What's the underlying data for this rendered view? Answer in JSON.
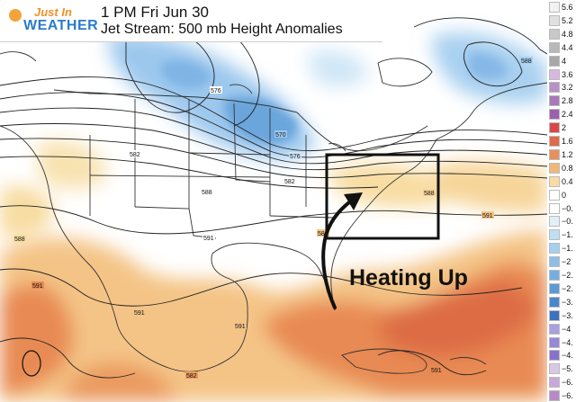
{
  "header": {
    "logo_top": "Just In",
    "logo_bottom": "WEATHER",
    "line1": "1 PM Fri Jun 30",
    "line2": "Jet Stream: 500 mb  Height Anomalies"
  },
  "annotation": {
    "text": "Heating Up"
  },
  "contour_labels": [
    "576",
    "570",
    "576",
    "582",
    "582",
    "588",
    "588",
    "588",
    "588",
    "591",
    "591",
    "591",
    "591",
    "591",
    "591",
    "582",
    "588"
  ],
  "legend": {
    "labels": [
      "5.6",
      "5.2",
      "4.8",
      "4.4",
      "4",
      "3.6",
      "3.2",
      "2.8",
      "2.4",
      "2",
      "1.6",
      "1.2",
      "0.8",
      "0.4",
      "0",
      "−0.",
      "−0.",
      "−1.",
      "−1.",
      "−2",
      "−2.",
      "−2.",
      "−3.",
      "−3.",
      "−4",
      "−4.",
      "−4.",
      "−5.",
      "−6.",
      "−6."
    ],
    "colors": [
      "#f2f2f2",
      "#e0e0e0",
      "#c8c8c8",
      "#b8b8b8",
      "#a8a8a8",
      "#d8b8e0",
      "#b890c8",
      "#a878b8",
      "#9a60b0",
      "#d8484a",
      "#e06a4a",
      "#e8905a",
      "#f0b878",
      "#f8dca0",
      "#ffffff",
      "#ffffff",
      "#dff0f8",
      "#bfe0f4",
      "#a4d0ef",
      "#8cbfe8",
      "#74aee0",
      "#5c9ad6",
      "#4a86cc",
      "#3c72c0",
      "#a8a0e0",
      "#9888d8",
      "#8870cc",
      "#d8c8e8",
      "#c8a8d8",
      "#b888c8"
    ]
  }
}
